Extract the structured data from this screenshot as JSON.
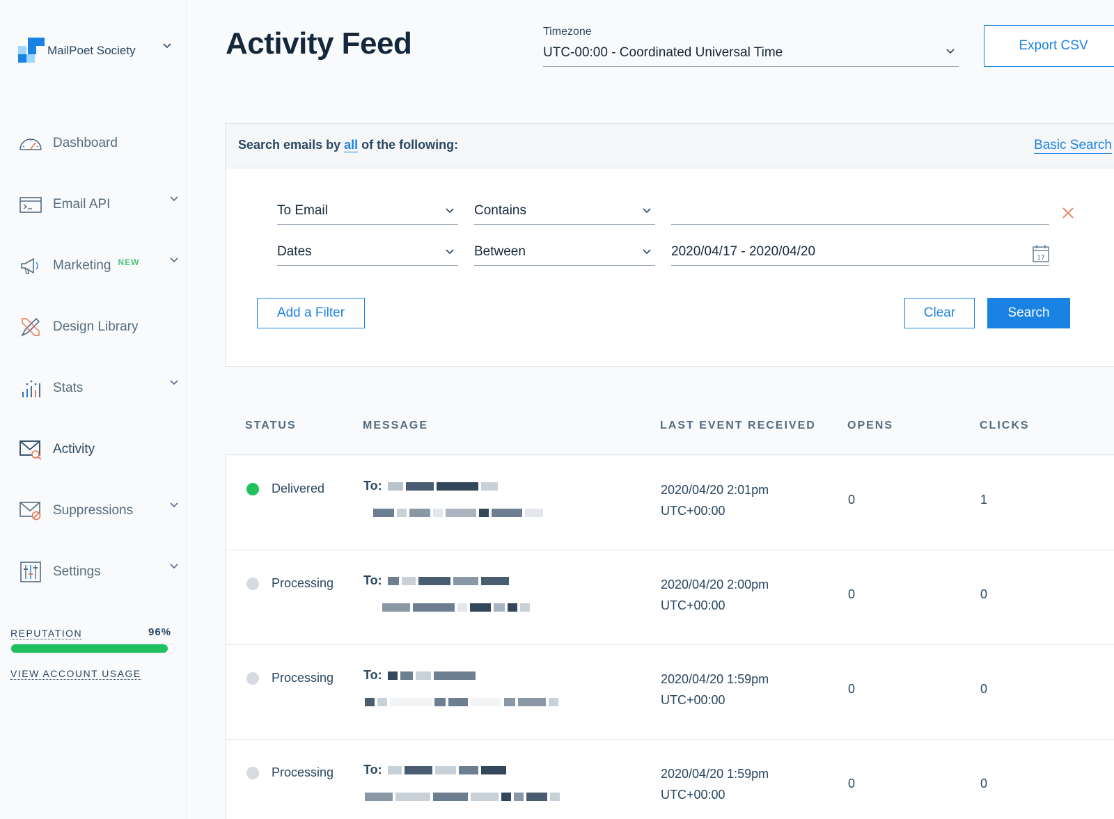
{
  "brand": {
    "name": "MailPoet Society",
    "logo_color": "#1a82e2"
  },
  "nav": {
    "items": [
      {
        "label": "Dashboard",
        "icon": "dashboard-gauge-icon",
        "has_chevron": false
      },
      {
        "label": "Email API",
        "icon": "terminal-icon",
        "has_chevron": true
      },
      {
        "label": "Marketing",
        "badge": "NEW",
        "icon": "megaphone-icon",
        "has_chevron": true
      },
      {
        "label": "Design Library",
        "icon": "design-tools-icon",
        "has_chevron": false
      },
      {
        "label": "Stats",
        "icon": "stats-chart-icon",
        "has_chevron": true
      },
      {
        "label": "Activity",
        "icon": "activity-envelope-icon",
        "has_chevron": false,
        "active": true
      },
      {
        "label": "Suppressions",
        "icon": "suppression-envelope-icon",
        "has_chevron": true
      },
      {
        "label": "Settings",
        "icon": "settings-sliders-icon",
        "has_chevron": true
      }
    ]
  },
  "reputation": {
    "label": "REPUTATION",
    "value": "96%",
    "level": 0.96,
    "color": "#1ec15d"
  },
  "account_usage_link": "VIEW ACCOUNT USAGE",
  "header": {
    "title": "Activity Feed",
    "timezone_label": "Timezone",
    "timezone_value": "UTC-00:00 - Coordinated Universal Time",
    "export_label": "Export CSV"
  },
  "search": {
    "heading_prefix": "Search emails by",
    "heading_link": "all",
    "heading_suffix": "of the following:",
    "basic_search_label": "Basic Search",
    "filters": [
      {
        "field": "To Email",
        "operator": "Contains",
        "value": ""
      },
      {
        "field": "Dates",
        "operator": "Between",
        "value": "2020/04/17 - 2020/04/20"
      }
    ],
    "add_filter_label": "Add a Filter",
    "clear_label": "Clear",
    "search_label": "Search"
  },
  "table": {
    "columns": [
      "STATUS",
      "MESSAGE",
      "LAST EVENT RECEIVED",
      "OPENS",
      "CLICKS"
    ],
    "rows": [
      {
        "status": "Delivered",
        "status_color": "#1ec15d",
        "to_label": "To:",
        "event_date": "2020/04/20 2:01pm",
        "event_tz": "UTC+00:00",
        "opens": "0",
        "clicks": "1"
      },
      {
        "status": "Processing",
        "status_color": "#d5dbe1",
        "to_label": "To:",
        "event_date": "2020/04/20 2:00pm",
        "event_tz": "UTC+00:00",
        "opens": "0",
        "clicks": "0"
      },
      {
        "status": "Processing",
        "status_color": "#d5dbe1",
        "to_label": "To:",
        "event_date": "2020/04/20 1:59pm",
        "event_tz": "UTC+00:00",
        "opens": "0",
        "clicks": "0"
      },
      {
        "status": "Processing",
        "status_color": "#d5dbe1",
        "to_label": "To:",
        "event_date": "2020/04/20 1:59pm",
        "event_tz": "UTC+00:00",
        "opens": "0",
        "clicks": "0"
      }
    ]
  },
  "colors": {
    "accent": "#1a82e2",
    "text": "#294661",
    "remove_x": "#e8734e"
  }
}
